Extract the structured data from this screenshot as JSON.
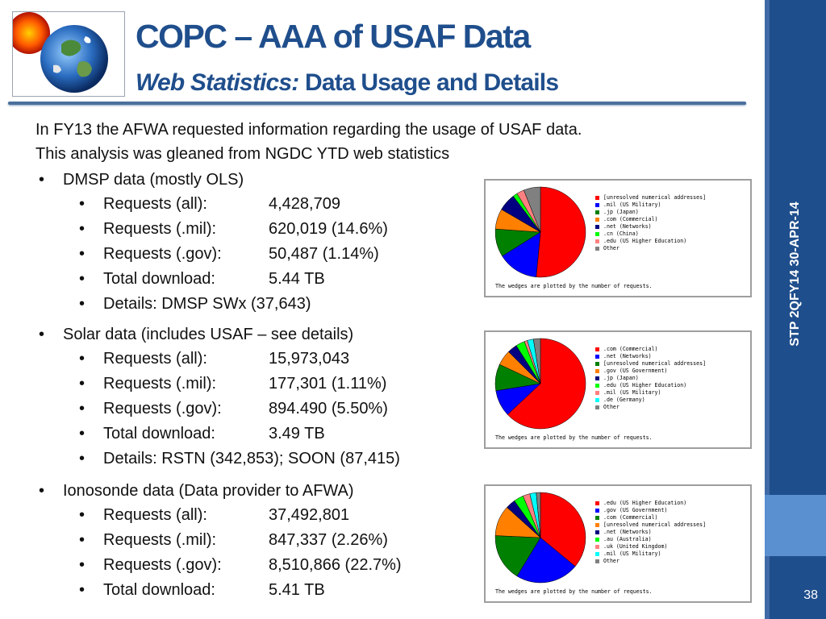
{
  "header": {
    "title": "COPC – AAA of USAF Data",
    "subtitle_bold": "Web Statistics:",
    "subtitle_rest": " Data Usage and Details"
  },
  "sidebar": {
    "vertical_text": "STP 2QFY14 30-APR-14",
    "page_number": "38"
  },
  "intro": [
    "In FY13 the AFWA requested information regarding the usage of USAF data.",
    "This analysis was gleaned from NGDC YTD web statistics"
  ],
  "sections": [
    {
      "heading": "DMSP data (mostly OLS)",
      "items": [
        {
          "label": "Requests (all):",
          "value": "4,428,709"
        },
        {
          "label": "Requests (.mil):",
          "value": "620,019 (14.6%)"
        },
        {
          "label": "Requests (.gov):",
          "value": "50,487 (1.14%)"
        },
        {
          "label": "Total download:",
          "value": "5.44 TB"
        }
      ],
      "extra": "Details: DMSP SWx (37,643)"
    },
    {
      "heading": "Solar data (includes USAF – see details)",
      "items": [
        {
          "label": "Requests (all):",
          "value": "15,973,043"
        },
        {
          "label": "Requests (.mil):",
          "value": "177,301 (1.11%)"
        },
        {
          "label": "Requests (.gov):",
          "value": "894.490 (5.50%)"
        },
        {
          "label": "Total download:",
          "value": "3.49 TB"
        }
      ],
      "extra": "Details: RSTN (342,853); SOON (87,415)"
    },
    {
      "heading": "Ionosonde data (Data provider to AFWA)",
      "items": [
        {
          "label": "Requests (all):",
          "value": "37,492,801"
        },
        {
          "label": "Requests (.mil):",
          "value": "847,337 (2.26%)"
        },
        {
          "label": "Requests (.gov):",
          "value": "8,510,866 (22.7%)"
        },
        {
          "label": "Total download:",
          "value": "5.41 TB"
        }
      ]
    }
  ],
  "chart_note": "The wedges are plotted by the number of requests.",
  "chart_data": [
    {
      "type": "pie",
      "legend": [
        "[unresolved numerical addresses]",
        ".mil (US Military)",
        ".jp (Japan)",
        ".com (Commercial)",
        ".net (Networks)",
        ".cn (China)",
        ".edu (US Higher Education)",
        "Other"
      ],
      "colors": [
        "#ff0000",
        "#0000ff",
        "#008000",
        "#ff8000",
        "#000080",
        "#00ff00",
        "#ff8080",
        "#808080"
      ],
      "values": [
        51.5,
        14.6,
        10.0,
        7.3,
        6.3,
        1.6,
        2.7,
        6.0
      ]
    },
    {
      "type": "pie",
      "legend": [
        ".com (Commercial)",
        ".net (Networks)",
        "[unresolved numerical addresses]",
        ".gov (US Government)",
        ".jp (Japan)",
        ".edu (US Higher Education)",
        ".mil (US Military)",
        ".de (Germany)",
        "Other"
      ],
      "colors": [
        "#ff0000",
        "#0000ff",
        "#008000",
        "#ff8000",
        "#000080",
        "#00ff00",
        "#ff8080",
        "#00ffff",
        "#808080"
      ],
      "values": [
        63.0,
        9.5,
        9.5,
        5.5,
        3.5,
        3.2,
        1.1,
        2.2,
        2.5
      ]
    },
    {
      "type": "pie",
      "legend": [
        ".edu (US Higher Education)",
        ".gov (US Government)",
        ".com (Commercial)",
        "[unresolved numerical addresses]",
        ".net (Networks)",
        ".au (Australia)",
        ".uk (United Kingdom)",
        ".mil (US Military)",
        "Other"
      ],
      "colors": [
        "#ff0000",
        "#0000ff",
        "#008000",
        "#ff8000",
        "#000080",
        "#00ff00",
        "#ff8080",
        "#00ffff",
        "#808080"
      ],
      "values": [
        36.0,
        22.7,
        17.0,
        11.0,
        3.5,
        3.5,
        2.5,
        2.3,
        1.5
      ]
    }
  ]
}
